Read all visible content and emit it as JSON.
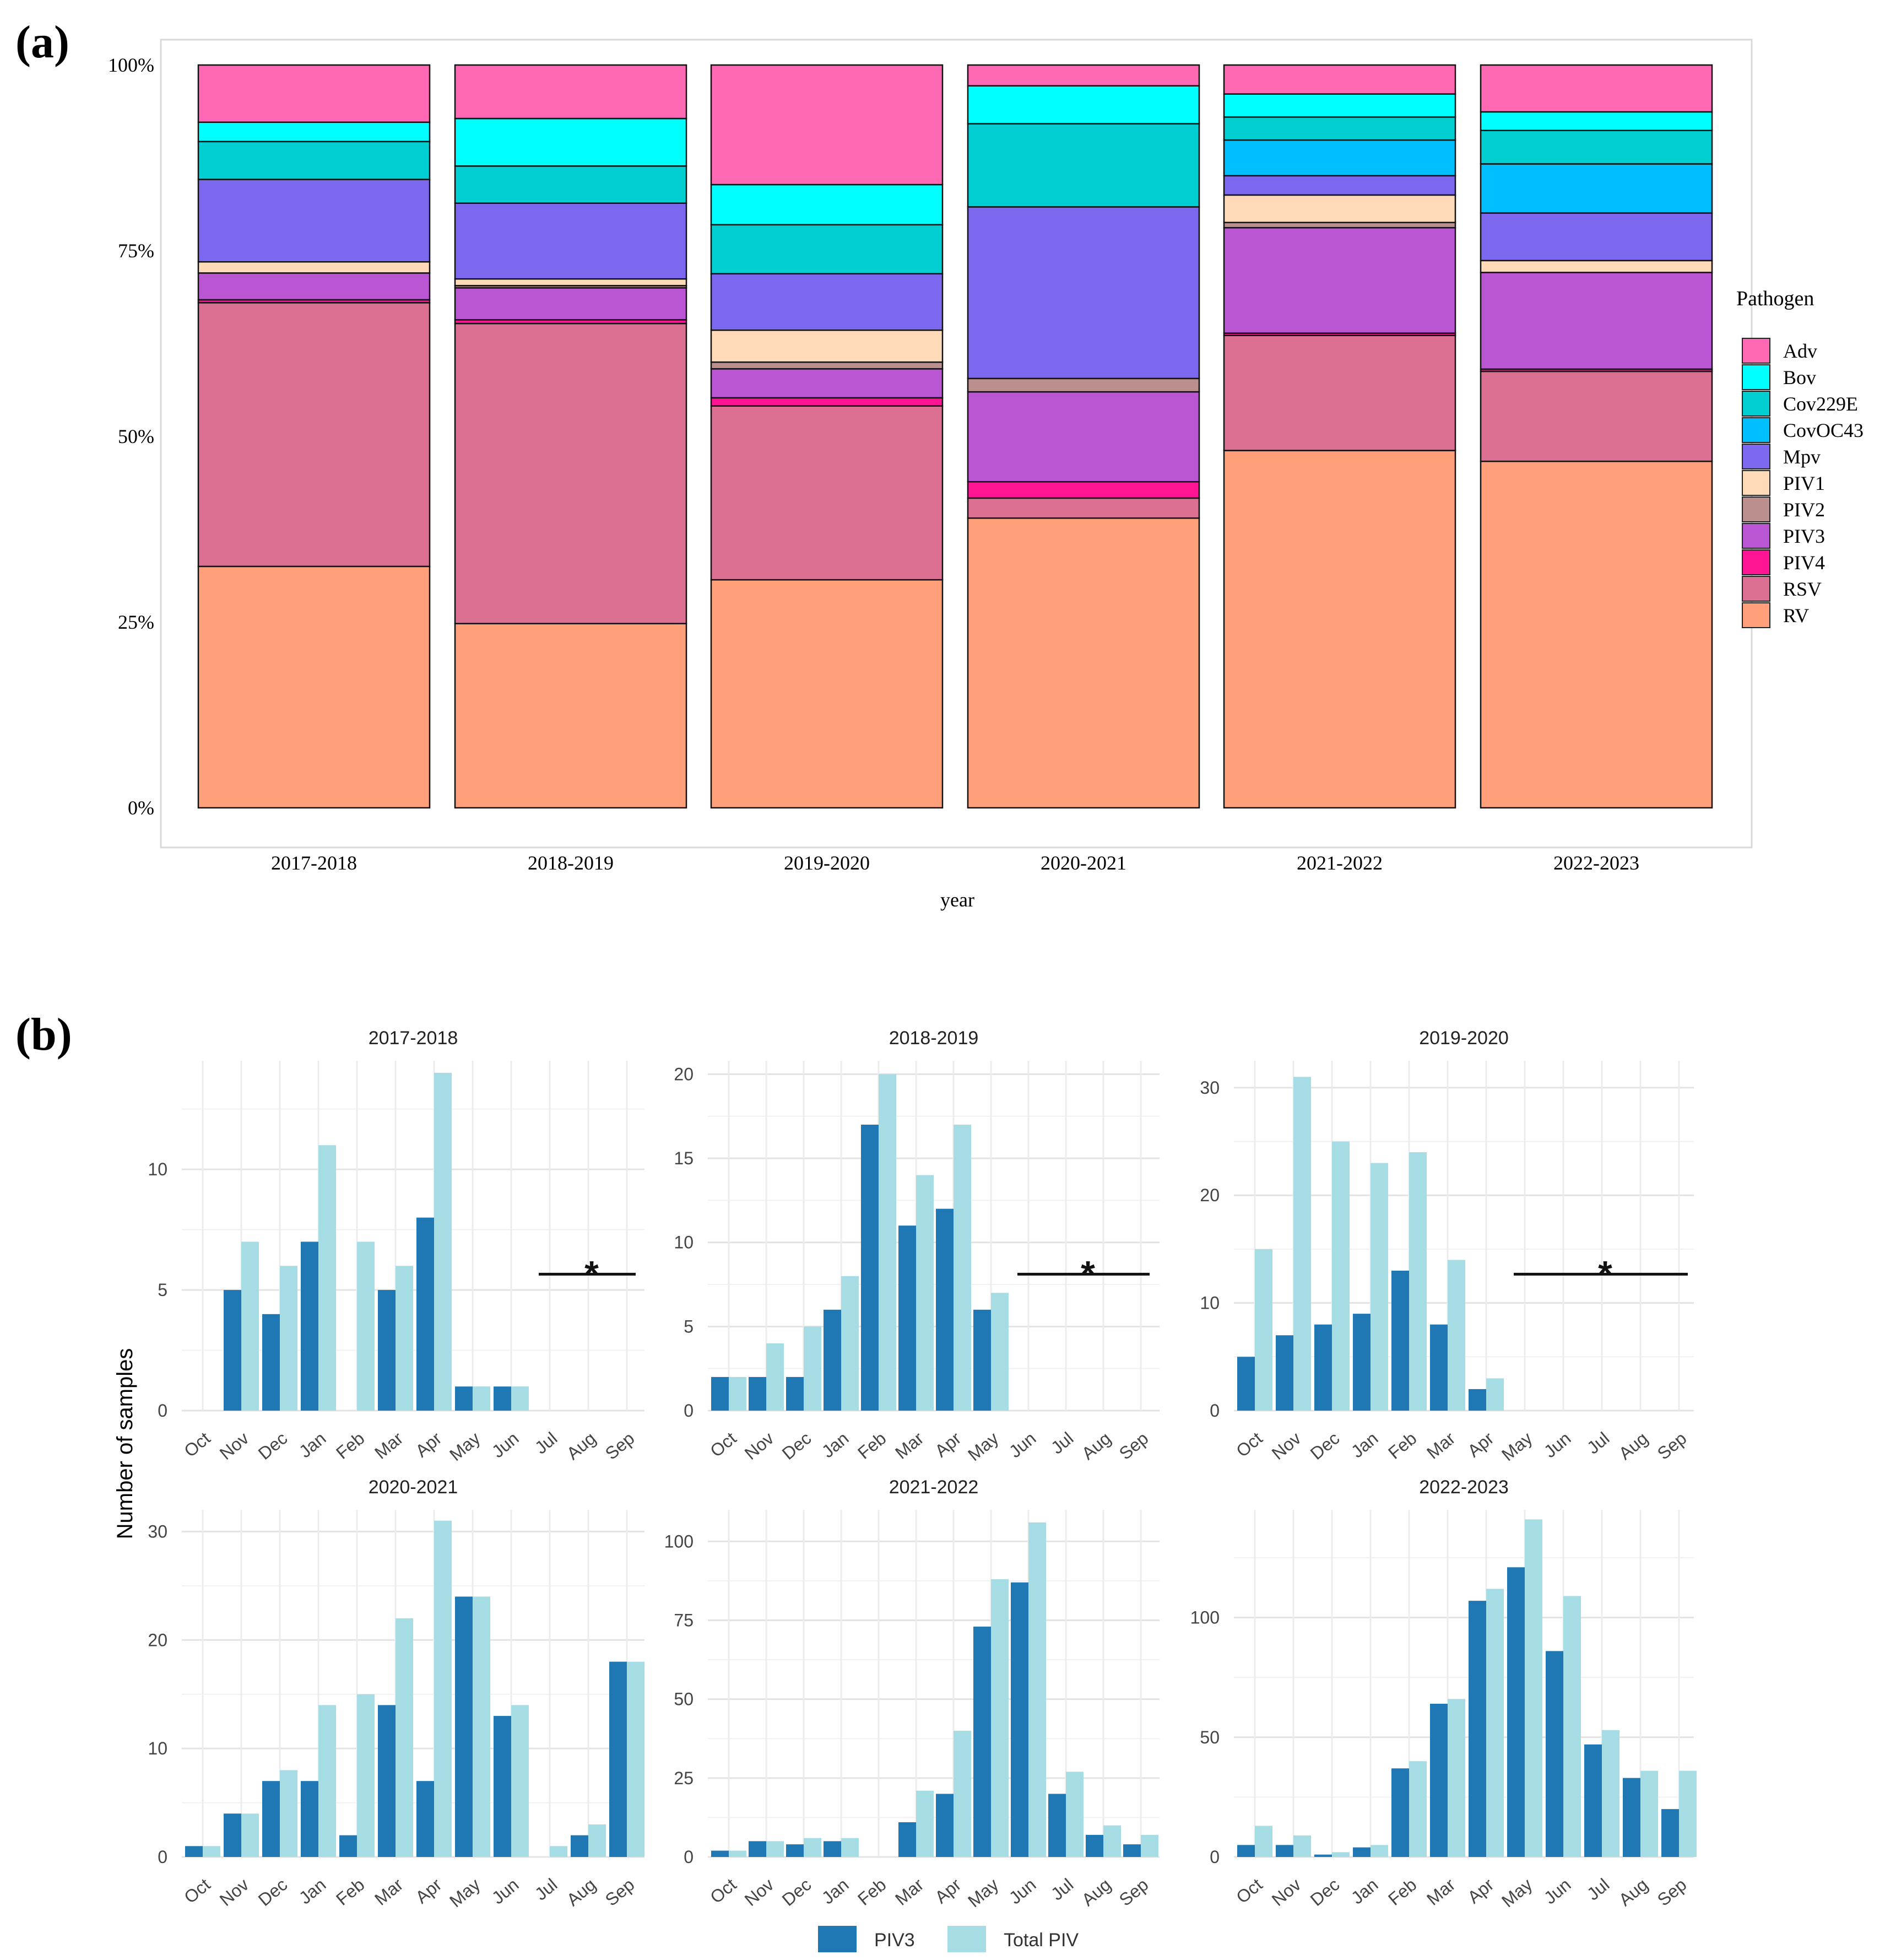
{
  "panel_a_label": "(a)",
  "panel_b_label": "(b)",
  "colors": {
    "Adv": "#ff69b4",
    "Bov": "#00ffff",
    "Cov229E": "#00ced1",
    "CovOC43": "#00bfff",
    "Mpv": "#7b68ee",
    "PIV1": "#ffdab9",
    "PIV2": "#bc8f8f",
    "PIV3": "#ba55d3",
    "PIV4": "#ff1493",
    "RSV": "#db7093",
    "RV": "#ffa07a",
    "piv3_bar": "#1f78b4",
    "total_bar": "#a6dce4"
  },
  "chart_data": [
    {
      "type": "bar",
      "stacked": true,
      "normalized": true,
      "title": "",
      "xlabel": "year",
      "ylabel": "",
      "ylim": [
        0,
        1
      ],
      "y_ticks": [
        "0%",
        "25%",
        "50%",
        "75%",
        "100%"
      ],
      "categories": [
        "2017-2018",
        "2018-2019",
        "2019-2020",
        "2020-2021",
        "2021-2022",
        "2022-2023"
      ],
      "legend_title": "Pathogen",
      "legend_position": "right",
      "legend": [
        "Adv",
        "Bov",
        "Cov229E",
        "CovOC43",
        "Mpv",
        "PIV1",
        "PIV2",
        "PIV3",
        "PIV4",
        "RSV",
        "RV"
      ],
      "series": [
        {
          "name": "RV",
          "values": [
            32.5,
            24.8,
            30.7,
            39.0,
            48.1,
            46.6
          ]
        },
        {
          "name": "RSV",
          "values": [
            35.5,
            40.4,
            23.4,
            2.7,
            15.5,
            12.1
          ]
        },
        {
          "name": "PIV4",
          "values": [
            0.4,
            0.5,
            1.1,
            2.2,
            0.3,
            0.3
          ]
        },
        {
          "name": "PIV3",
          "values": [
            3.6,
            4.3,
            3.9,
            12.1,
            14.2,
            13.0
          ]
        },
        {
          "name": "PIV2",
          "values": [
            0.0,
            0.3,
            0.9,
            1.8,
            0.7,
            0.0
          ]
        },
        {
          "name": "PIV1",
          "values": [
            1.5,
            0.9,
            4.3,
            0.0,
            3.7,
            1.6
          ]
        },
        {
          "name": "Mpv",
          "values": [
            11.1,
            10.2,
            7.6,
            23.1,
            2.6,
            6.4
          ]
        },
        {
          "name": "CovOC43",
          "values": [
            0.0,
            0.0,
            0.0,
            0.0,
            4.8,
            6.6
          ]
        },
        {
          "name": "Cov229E",
          "values": [
            5.1,
            5.0,
            6.6,
            11.2,
            3.1,
            4.5
          ]
        },
        {
          "name": "Bov",
          "values": [
            2.6,
            6.4,
            5.4,
            5.1,
            3.1,
            2.5
          ]
        },
        {
          "name": "Adv",
          "values": [
            7.7,
            7.2,
            16.1,
            2.8,
            3.9,
            6.3
          ]
        }
      ]
    },
    {
      "type": "bar",
      "title": "2017-2018",
      "ylabel": "Number of samples",
      "ylim": [
        0,
        14.5
      ],
      "y_ticks": [
        0,
        5,
        10
      ],
      "categories": [
        "Oct",
        "Nov",
        "Dec",
        "Jan",
        "Feb",
        "Mar",
        "Apr",
        "May",
        "Jun",
        "Jul",
        "Aug",
        "Sep"
      ],
      "series": [
        {
          "name": "PIV3",
          "values": [
            0,
            5,
            4,
            7,
            0,
            5,
            8,
            1,
            1,
            0,
            0,
            0
          ]
        },
        {
          "name": "Total PIV",
          "values": [
            0,
            7,
            6,
            11,
            7,
            6,
            14,
            1,
            1,
            0,
            0,
            0
          ]
        }
      ],
      "annotation": "*",
      "annotation_span": [
        "Jul",
        "Sep"
      ]
    },
    {
      "type": "bar",
      "title": "2018-2019",
      "ylim": [
        0,
        20.8
      ],
      "y_ticks": [
        0,
        5,
        10,
        15,
        20
      ],
      "categories": [
        "Oct",
        "Nov",
        "Dec",
        "Jan",
        "Feb",
        "Mar",
        "Apr",
        "May",
        "Jun",
        "Jul",
        "Aug",
        "Sep"
      ],
      "series": [
        {
          "name": "PIV3",
          "values": [
            2,
            2,
            2,
            6,
            17,
            11,
            12,
            6,
            0,
            0,
            0,
            0
          ]
        },
        {
          "name": "Total PIV",
          "values": [
            2,
            4,
            5,
            8,
            20,
            14,
            17,
            7,
            0,
            0,
            0,
            0
          ]
        }
      ],
      "annotation": "*",
      "annotation_span": [
        "Jun",
        "Sep"
      ]
    },
    {
      "type": "bar",
      "title": "2019-2020",
      "ylim": [
        0,
        32.5
      ],
      "y_ticks": [
        0,
        10,
        20,
        30
      ],
      "categories": [
        "Oct",
        "Nov",
        "Dec",
        "Jan",
        "Feb",
        "Mar",
        "Apr",
        "May",
        "Jun",
        "Jul",
        "Aug",
        "Sep"
      ],
      "series": [
        {
          "name": "PIV3",
          "values": [
            5,
            7,
            8,
            9,
            13,
            8,
            2,
            0,
            0,
            0,
            0,
            0
          ]
        },
        {
          "name": "Total PIV",
          "values": [
            15,
            31,
            25,
            23,
            24,
            14,
            3,
            0,
            0,
            0,
            0,
            0
          ]
        }
      ],
      "annotation": "*",
      "annotation_span": [
        "May",
        "Sep"
      ]
    },
    {
      "type": "bar",
      "title": "2020-2021",
      "ylabel": "Number of samples",
      "ylim": [
        0,
        32
      ],
      "y_ticks": [
        0,
        10,
        20,
        30
      ],
      "categories": [
        "Oct",
        "Nov",
        "Dec",
        "Jan",
        "Feb",
        "Mar",
        "Apr",
        "May",
        "Jun",
        "Jul",
        "Aug",
        "Sep"
      ],
      "series": [
        {
          "name": "PIV3",
          "values": [
            1,
            4,
            7,
            7,
            2,
            14,
            7,
            24,
            13,
            0,
            2,
            18
          ]
        },
        {
          "name": "Total PIV",
          "values": [
            1,
            4,
            8,
            14,
            15,
            22,
            31,
            24,
            14,
            1,
            3,
            18
          ]
        }
      ]
    },
    {
      "type": "bar",
      "title": "2021-2022",
      "ylim": [
        0,
        110
      ],
      "y_ticks": [
        0,
        25,
        50,
        75,
        100
      ],
      "categories": [
        "Oct",
        "Nov",
        "Dec",
        "Jan",
        "Feb",
        "Mar",
        "Apr",
        "May",
        "Jun",
        "Jul",
        "Aug",
        "Sep"
      ],
      "series": [
        {
          "name": "PIV3",
          "values": [
            2,
            5,
            4,
            5,
            0,
            11,
            20,
            73,
            87,
            20,
            7,
            4
          ]
        },
        {
          "name": "Total PIV",
          "values": [
            2,
            5,
            6,
            6,
            0,
            21,
            40,
            88,
            106,
            27,
            10,
            7
          ]
        }
      ]
    },
    {
      "type": "bar",
      "title": "2022-2023",
      "ylim": [
        0,
        145
      ],
      "y_ticks": [
        0,
        50,
        100
      ],
      "categories": [
        "Oct",
        "Nov",
        "Dec",
        "Jan",
        "Feb",
        "Mar",
        "Apr",
        "May",
        "Jun",
        "Jul",
        "Aug",
        "Sep"
      ],
      "series": [
        {
          "name": "PIV3",
          "values": [
            5,
            5,
            1,
            4,
            37,
            64,
            107,
            121,
            86,
            47,
            33,
            20
          ]
        },
        {
          "name": "Total PIV",
          "values": [
            13,
            9,
            2,
            5,
            40,
            66,
            112,
            141,
            109,
            53,
            36,
            36
          ]
        }
      ]
    }
  ],
  "panel_b_legend": [
    "PIV3",
    "Total PIV"
  ]
}
